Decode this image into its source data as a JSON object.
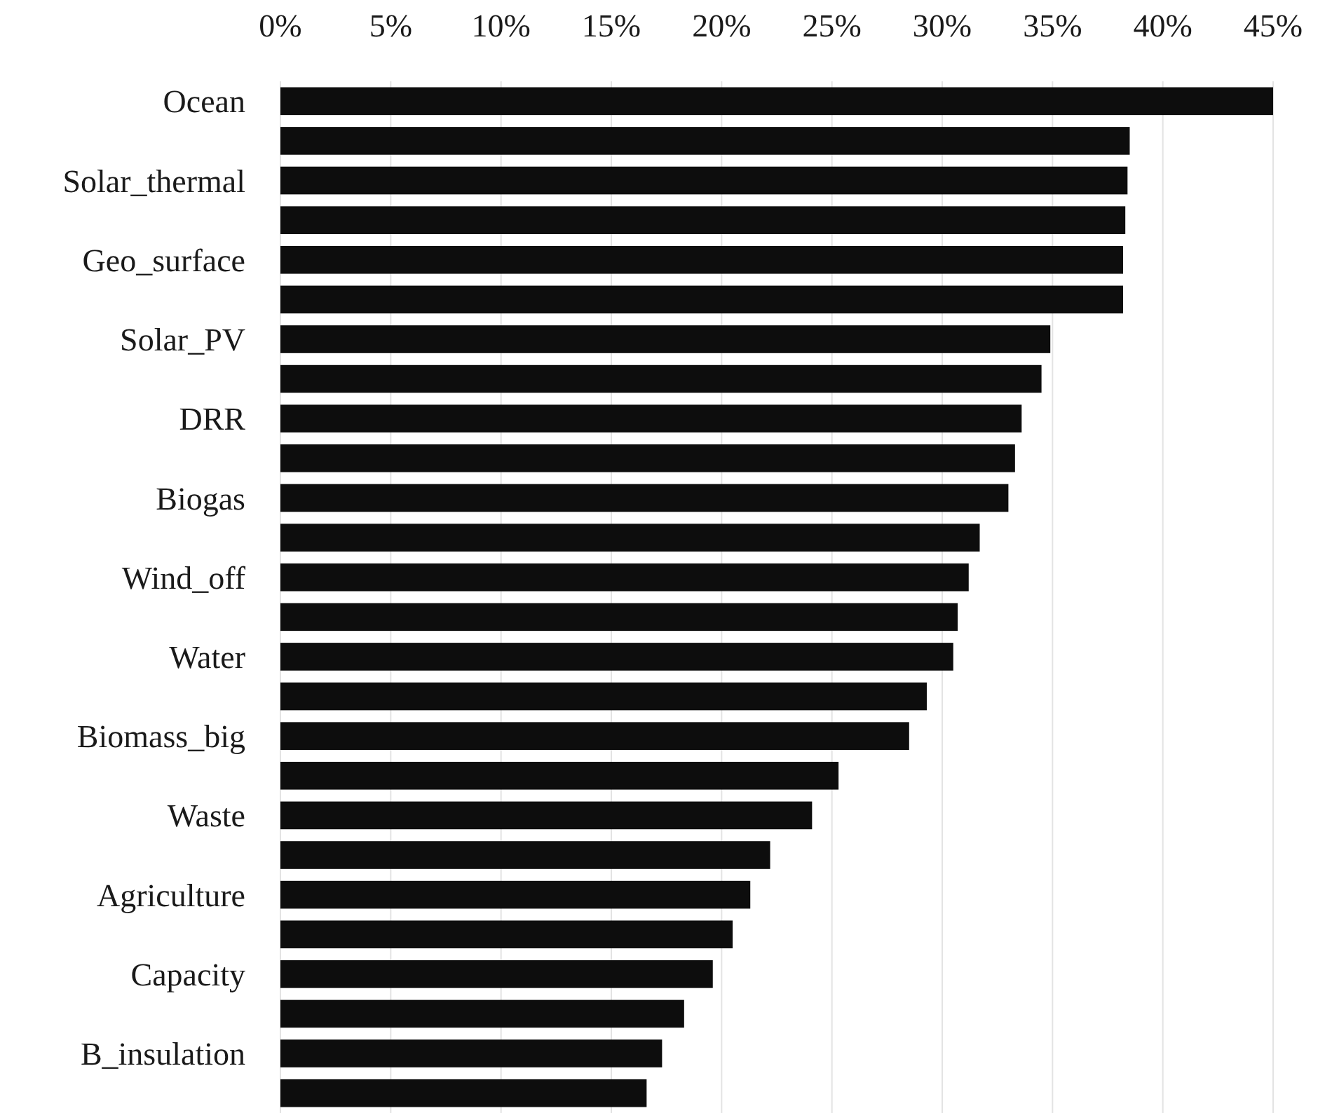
{
  "chart_data": {
    "type": "bar",
    "orientation": "horizontal",
    "categories": [
      "Ocean",
      null,
      "Solar_thermal",
      null,
      "Geo_surface",
      null,
      "Solar_PV",
      null,
      "DRR",
      null,
      "Biogas",
      null,
      "Wind_off",
      null,
      "Water",
      null,
      "Biomass_big",
      null,
      "Waste",
      null,
      "Agriculture",
      null,
      "Capacity",
      null,
      "B_insulation",
      null
    ],
    "values": [
      45.0,
      38.5,
      38.4,
      38.3,
      38.2,
      38.2,
      34.9,
      34.5,
      33.6,
      33.3,
      33.0,
      31.7,
      31.2,
      30.7,
      30.5,
      29.3,
      28.5,
      25.3,
      24.1,
      22.2,
      21.3,
      20.5,
      19.6,
      18.3,
      17.3,
      16.6
    ],
    "color": "#0d0d0d",
    "xlim": [
      0,
      45
    ],
    "xticks": [
      {
        "value": 0,
        "label": "0%"
      },
      {
        "value": 5,
        "label": "5%"
      },
      {
        "value": 10,
        "label": "10%"
      },
      {
        "value": 15,
        "label": "15%"
      },
      {
        "value": 20,
        "label": "20%"
      },
      {
        "value": 25,
        "label": "25%"
      },
      {
        "value": 30,
        "label": "30%"
      },
      {
        "value": 35,
        "label": "35%"
      },
      {
        "value": 40,
        "label": "40%"
      },
      {
        "value": 45,
        "label": "45%"
      }
    ],
    "grid": "x"
  }
}
